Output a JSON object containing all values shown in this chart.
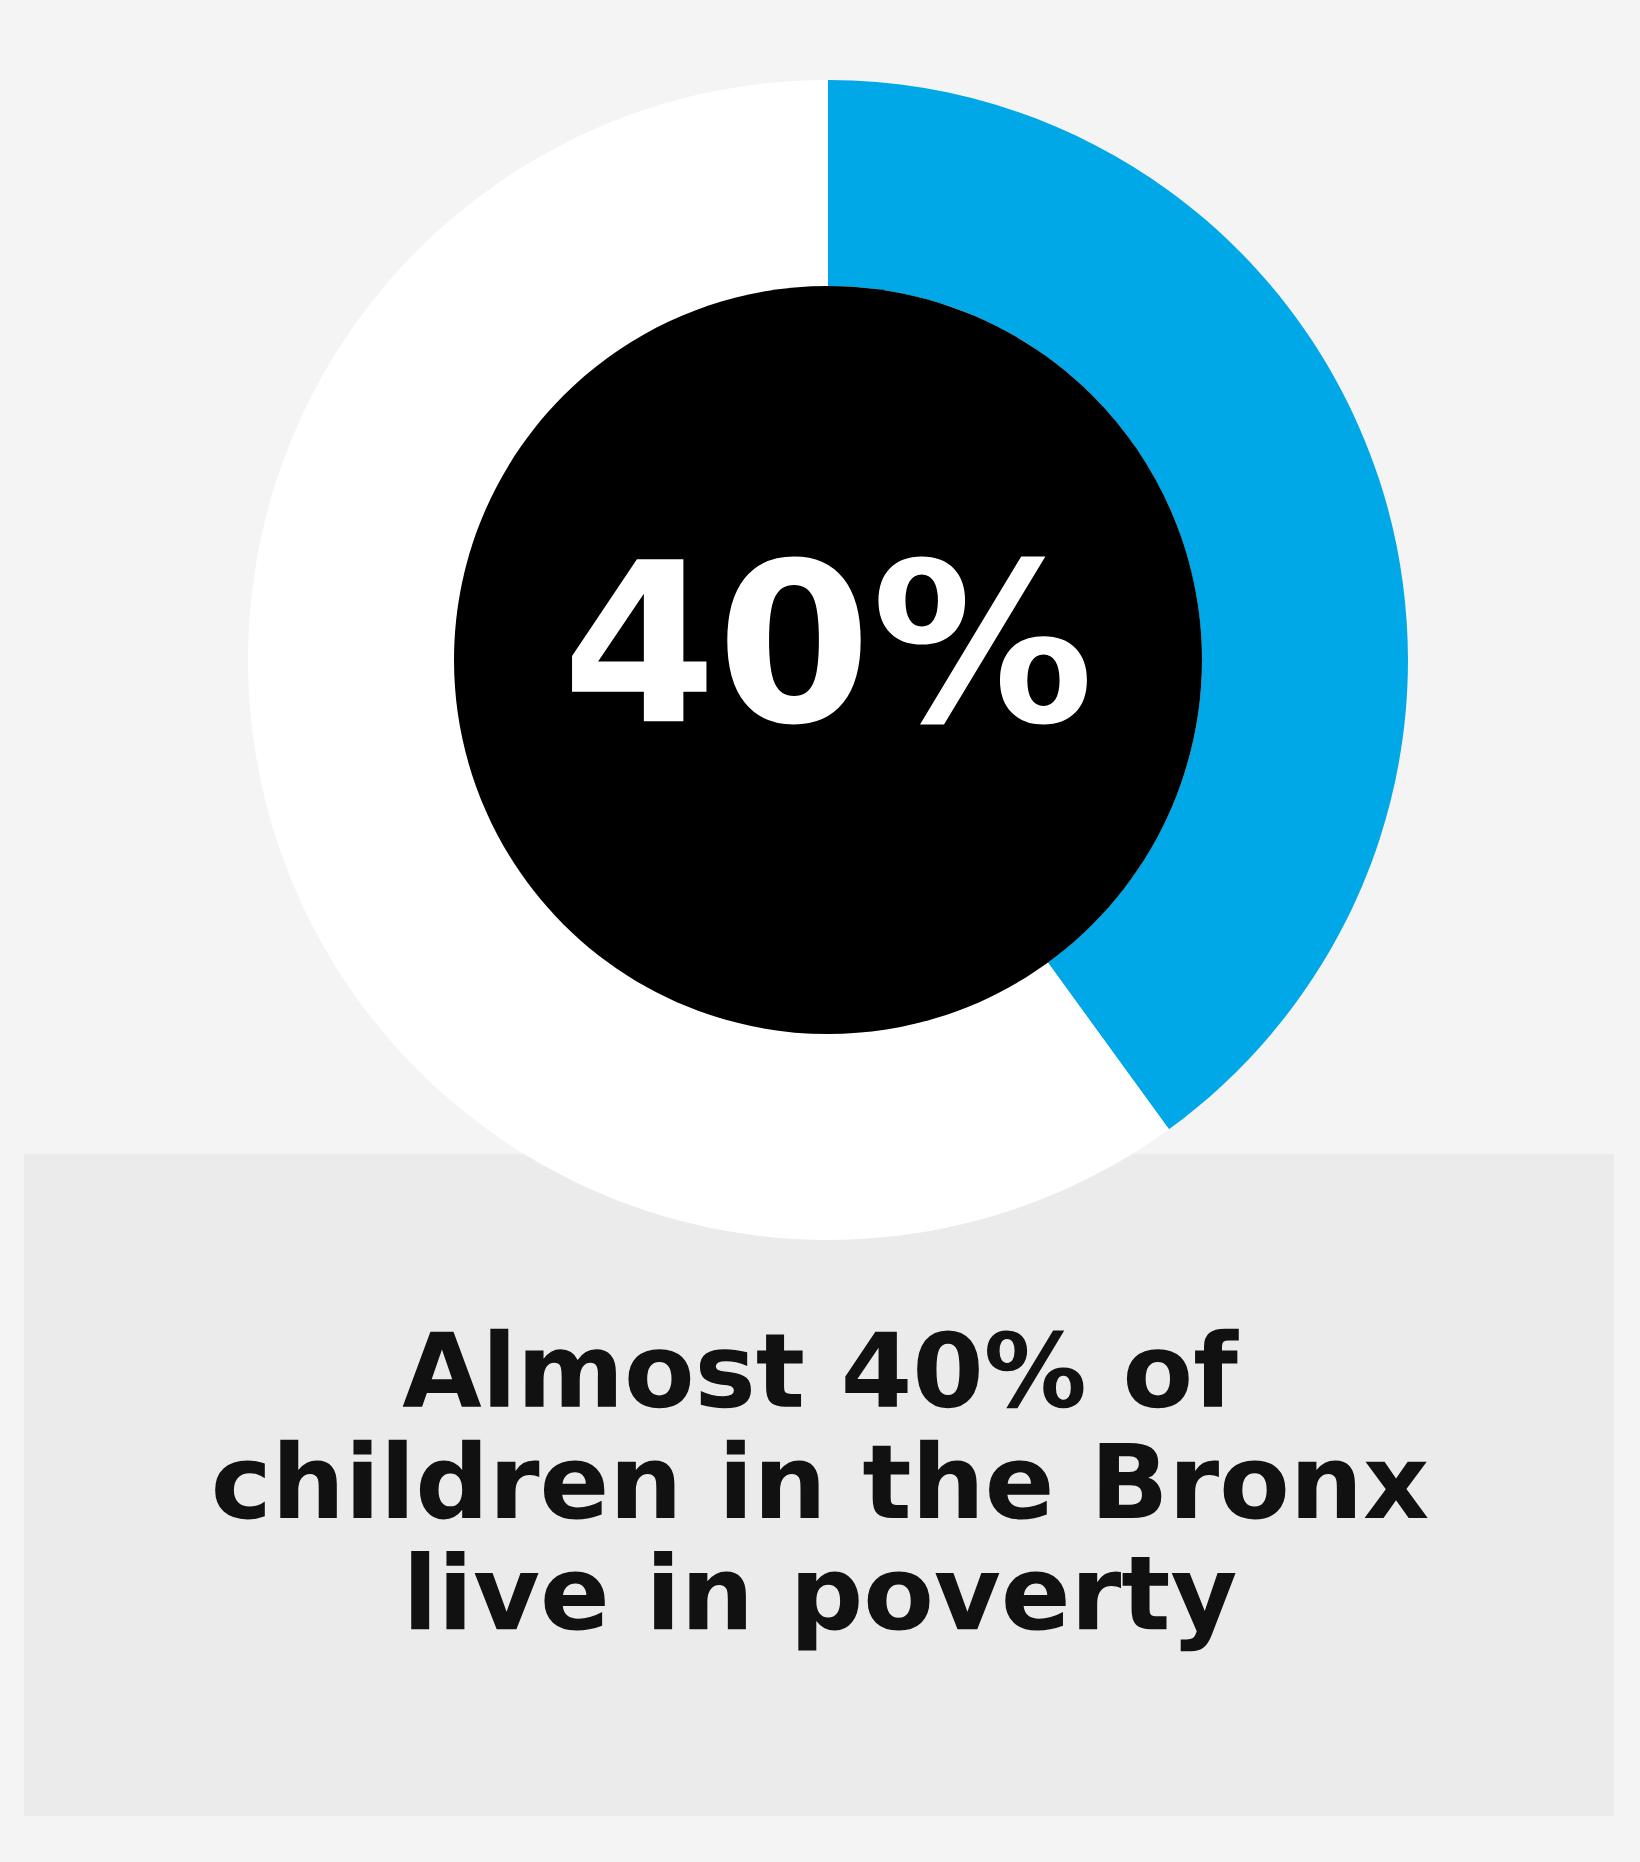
{
  "chart_data": {
    "type": "donut",
    "categories": [
      null,
      null
    ],
    "values": [
      40,
      60
    ],
    "colors": [
      "#00a8e8",
      "#ffffff"
    ],
    "annotations": [
      "40%"
    ],
    "title": "Almost 40% of\nchildren in the Bronx\nlive in poverty",
    "legend": false
  }
}
